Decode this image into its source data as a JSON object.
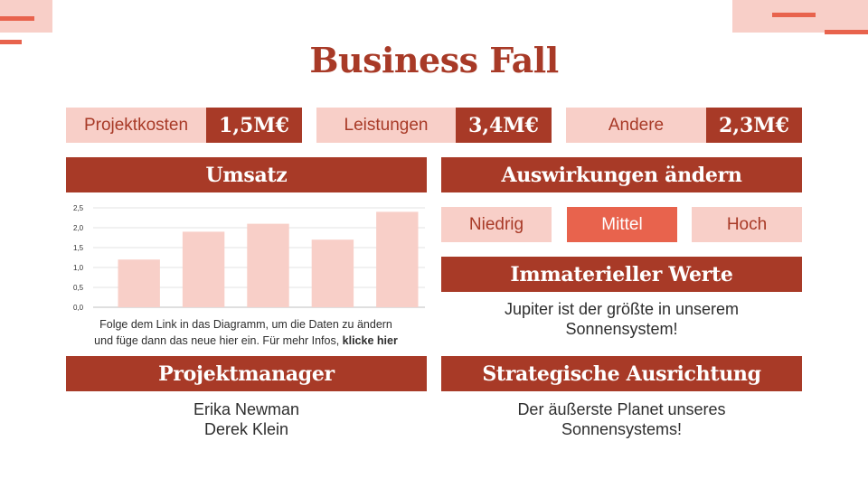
{
  "title": "Business Fall",
  "kpis": [
    {
      "label": "Projektkosten",
      "value": "1,5M€"
    },
    {
      "label": "Leistungen",
      "value": "3,4M€"
    },
    {
      "label": "Andere",
      "value": "2,3M€"
    }
  ],
  "sections": {
    "umsatz": "Umsatz",
    "auswirkungen": "Auswirkungen ändern",
    "immateriell": "Immaterieller Werte",
    "projektmanager": "Projektmanager",
    "strategisch": "Strategische Ausrichtung"
  },
  "impact_options": [
    "Niedrig",
    "Mittel",
    "Hoch"
  ],
  "impact_selected": "Mittel",
  "immateriell_text": [
    "Jupiter ist der größte in unserem",
    "Sonnensystem!"
  ],
  "managers": [
    "Erika Newman",
    "Derek Klein"
  ],
  "strategisch_text": [
    "Der äußerste Planet unseres",
    "Sonnensystems!"
  ],
  "chart_note": {
    "line1": "Folge dem Link in das Diagramm,  um die Daten zu ändern",
    "line2": "und füge dann das neue hier ein. Für mehr Infos, ",
    "link": "klicke hier"
  },
  "colors": {
    "primary": "#a83a27",
    "light": "#f8cfc8",
    "accent": "#e8634d"
  },
  "chart_data": {
    "type": "bar",
    "categories": [
      "",
      "",
      "",
      "",
      ""
    ],
    "values": [
      1.2,
      1.9,
      2.1,
      1.7,
      2.4
    ],
    "ylim": [
      0,
      2.5
    ],
    "yticks": [
      "0,0",
      "0,5",
      "1,0",
      "1,5",
      "2,0",
      "2,5"
    ],
    "grid": true,
    "bar_color": "#f8cfc8"
  }
}
